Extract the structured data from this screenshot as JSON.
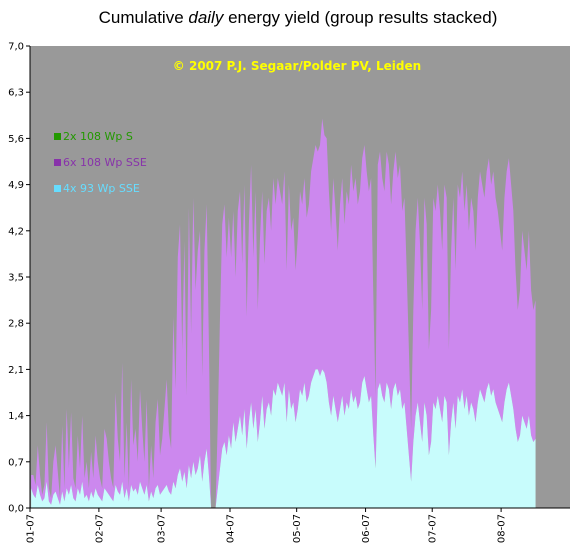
{
  "chart_data": {
    "type": "area",
    "title_prefix": "Cumulative ",
    "title_emphasis": "daily",
    "title_suffix": "  energy yield (group results stacked)",
    "annotation": "© 2007 P.J. Segaar/Polder PV, Leiden",
    "xlabel": "",
    "ylabel": "",
    "ylim": [
      0,
      7
    ],
    "yticks": [
      "0,0",
      "0,7",
      "1,4",
      "2,1",
      "2,8",
      "3,5",
      "4,2",
      "4,9",
      "5,6",
      "6,3",
      "7,0"
    ],
    "xticks": [
      "01-07",
      "02-07",
      "03-07",
      "04-07",
      "05-07",
      "06-07",
      "07-07",
      "08-07"
    ],
    "days_per_month": [
      31,
      28,
      31,
      30,
      31,
      30,
      31,
      31
    ],
    "plot_background": "#999999",
    "legend_position": "left-upper",
    "series": [
      {
        "name": "4x 93 Wp SSE",
        "color": "#c8fcfc",
        "legend_color": "#66ddff",
        "values": [
          0.3,
          0.2,
          0.15,
          0.35,
          0.2,
          0.1,
          0.15,
          0.4,
          0.1,
          0.05,
          0.2,
          0.25,
          0.15,
          0.05,
          0.25,
          0.1,
          0.3,
          0.2,
          0.35,
          0.15,
          0.1,
          0.3,
          0.2,
          0.4,
          0.15,
          0.2,
          0.1,
          0.25,
          0.15,
          0.3,
          0.2,
          0.15,
          0.1,
          0.3,
          0.25,
          0.2,
          0.15,
          0.1,
          0.35,
          0.25,
          0.2,
          0.4,
          0.15,
          0.3,
          0.1,
          0.35,
          0.25,
          0.3,
          0.2,
          0.4,
          0.3,
          0.2,
          0.35,
          0.1,
          0.25,
          0.15,
          0.3,
          0.35,
          0.2,
          0.25,
          0.3,
          0.35,
          0.25,
          0.2,
          0.4,
          0.3,
          0.5,
          0.6,
          0.4,
          0.55,
          0.3,
          0.65,
          0.45,
          0.7,
          0.5,
          0.6,
          0.8,
          0.4,
          0.7,
          0.9,
          0.5,
          0.0,
          0.0,
          0.0,
          0.3,
          0.6,
          0.9,
          1.0,
          0.8,
          1.1,
          0.9,
          1.3,
          1.0,
          1.2,
          1.4,
          1.1,
          1.5,
          0.9,
          1.3,
          1.6,
          1.2,
          1.5,
          1.0,
          1.3,
          1.7,
          1.2,
          1.5,
          1.6,
          1.4,
          1.8,
          1.7,
          1.9,
          1.8,
          1.7,
          1.9,
          1.3,
          1.8,
          1.5,
          1.6,
          1.3,
          1.5,
          1.8,
          1.7,
          1.9,
          1.6,
          1.7,
          1.9,
          2.0,
          2.1,
          2.1,
          2.0,
          2.1,
          2.05,
          1.9,
          1.6,
          1.4,
          1.7,
          1.5,
          1.3,
          1.5,
          1.7,
          1.4,
          1.6,
          1.5,
          1.8,
          1.6,
          1.7,
          1.5,
          1.6,
          1.9,
          2.0,
          1.8,
          1.6,
          1.7,
          1.1,
          0.6,
          1.8,
          1.9,
          1.7,
          1.6,
          1.9,
          1.8,
          1.5,
          1.8,
          1.9,
          1.7,
          1.8,
          1.5,
          1.6,
          1.2,
          0.8,
          0.4,
          1.0,
          1.4,
          1.6,
          1.3,
          1.0,
          1.6,
          1.4,
          0.8,
          1.0,
          1.6,
          1.5,
          1.7,
          1.5,
          1.3,
          1.7,
          1.6,
          0.8,
          1.3,
          1.6,
          1.2,
          1.7,
          1.6,
          1.8,
          1.5,
          1.7,
          1.4,
          1.6,
          1.5,
          1.3,
          1.6,
          1.8,
          1.7,
          1.6,
          1.8,
          1.9,
          1.7,
          1.8,
          1.6,
          1.5,
          1.4,
          1.3,
          1.6,
          1.8,
          1.9,
          1.7,
          1.5,
          1.2,
          1.0,
          1.1,
          1.4,
          1.3,
          1.2,
          1.4,
          1.1,
          1.0,
          1.05
        ]
      },
      {
        "name": "6x 108 Wp SSE",
        "color": "#cc88ee",
        "legend_color": "#8833aa",
        "values": [
          0.2,
          0.3,
          0.2,
          0.6,
          0.3,
          0.1,
          0.2,
          0.9,
          0.2,
          0.1,
          0.5,
          0.7,
          0.4,
          0.1,
          1.0,
          0.2,
          1.2,
          0.4,
          1.1,
          0.3,
          0.2,
          0.8,
          0.4,
          1.0,
          0.3,
          0.5,
          0.2,
          0.6,
          0.3,
          0.8,
          0.5,
          0.3,
          0.2,
          0.9,
          0.8,
          0.5,
          0.3,
          0.2,
          1.4,
          0.8,
          0.5,
          1.8,
          0.3,
          1.0,
          0.2,
          1.6,
          0.7,
          0.9,
          0.5,
          1.4,
          0.9,
          0.5,
          1.3,
          0.2,
          0.7,
          0.3,
          1.0,
          1.3,
          0.6,
          0.8,
          1.2,
          1.6,
          0.9,
          0.7,
          2.5,
          1.5,
          3.3,
          3.7,
          2.0,
          3.5,
          1.4,
          3.9,
          2.2,
          4.0,
          2.8,
          3.3,
          3.4,
          1.6,
          3.2,
          3.7,
          2.0,
          0.0,
          0.0,
          0.0,
          1.0,
          2.3,
          3.4,
          3.6,
          3.0,
          3.3,
          2.9,
          3.2,
          2.5,
          3.3,
          3.4,
          2.6,
          3.4,
          2.0,
          3.0,
          3.6,
          2.6,
          3.3,
          2.0,
          2.8,
          3.1,
          2.5,
          3.0,
          3.1,
          2.8,
          3.2,
          2.9,
          3.1,
          3.0,
          2.9,
          3.2,
          2.3,
          3.1,
          2.7,
          2.8,
          2.3,
          2.6,
          3.0,
          2.9,
          3.1,
          2.8,
          2.9,
          3.2,
          3.3,
          3.4,
          3.3,
          3.5,
          3.8,
          3.6,
          3.7,
          3.2,
          2.8,
          3.3,
          3.0,
          2.6,
          3.1,
          3.3,
          2.9,
          3.2,
          3.1,
          3.4,
          3.2,
          3.3,
          3.1,
          3.2,
          3.4,
          3.5,
          3.3,
          3.2,
          3.3,
          2.1,
          1.1,
          3.4,
          3.5,
          3.3,
          3.2,
          3.5,
          3.4,
          3.1,
          3.3,
          3.5,
          3.3,
          3.4,
          3.0,
          3.1,
          2.4,
          1.6,
          0.8,
          2.0,
          2.8,
          3.1,
          2.7,
          2.0,
          3.1,
          2.9,
          1.6,
          2.0,
          3.1,
          3.0,
          3.2,
          3.0,
          2.6,
          3.2,
          3.1,
          1.6,
          2.6,
          3.1,
          2.4,
          3.2,
          3.1,
          3.3,
          3.0,
          3.2,
          2.8,
          3.1,
          3.0,
          2.6,
          3.1,
          3.3,
          3.2,
          3.1,
          3.3,
          3.4,
          3.2,
          3.3,
          3.1,
          3.0,
          2.8,
          2.6,
          3.1,
          3.3,
          3.4,
          3.2,
          3.0,
          2.4,
          2.0,
          2.2,
          2.8,
          2.6,
          2.4,
          2.8,
          2.2,
          2.0,
          2.1
        ]
      },
      {
        "name": "2x 108 Wp S",
        "color": "#66aa00",
        "legend_color": "#229900",
        "values": []
      }
    ]
  }
}
